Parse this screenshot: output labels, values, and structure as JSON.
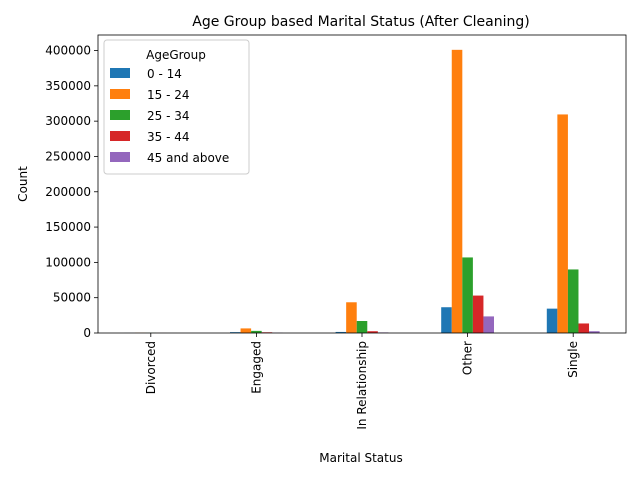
{
  "chart_data": {
    "type": "bar",
    "title": "Age Group based Marital Status (After Cleaning)",
    "xlabel": "Marital Status",
    "ylabel": "Count",
    "categories": [
      "Divorced",
      "Engaged",
      "In Relationship",
      "Other",
      "Single"
    ],
    "series": [
      {
        "name": "0 - 14",
        "color": "#1f77b4",
        "values": [
          100,
          1200,
          1500,
          36500,
          34500
        ]
      },
      {
        "name": "15 - 24",
        "color": "#ff7f0e",
        "values": [
          300,
          6500,
          43500,
          401000,
          309500
        ]
      },
      {
        "name": "25 - 34",
        "color": "#2ca02c",
        "values": [
          200,
          3000,
          17000,
          107000,
          90000
        ]
      },
      {
        "name": "35 - 44",
        "color": "#d62728",
        "values": [
          100,
          1000,
          2500,
          53000,
          13500
        ]
      },
      {
        "name": "45 and above",
        "color": "#9467bd",
        "values": [
          50,
          300,
          800,
          23500,
          2500
        ]
      }
    ],
    "ylim": [
      0,
      422000
    ],
    "yticks": [
      0,
      50000,
      100000,
      150000,
      200000,
      250000,
      300000,
      350000,
      400000
    ],
    "legend": {
      "title": "AgeGroup",
      "placement": "top-left"
    },
    "grid": false
  }
}
